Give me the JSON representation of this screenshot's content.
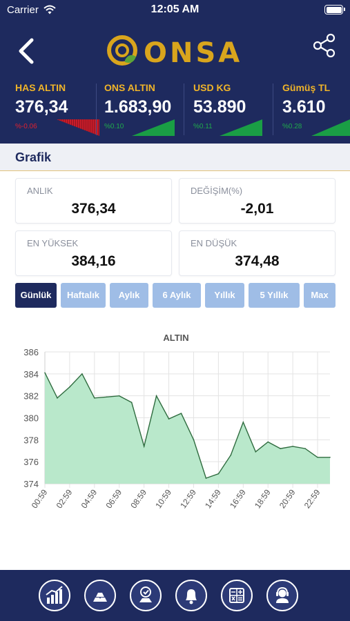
{
  "status_bar": {
    "carrier": "Carrier",
    "time": "12:05 AM"
  },
  "header": {
    "logo_text": "ONSA"
  },
  "tickers": [
    {
      "name": "HAS ALTIN",
      "price": "376,34",
      "change": "%-0.06",
      "direction": "down"
    },
    {
      "name": "ONS ALTIN",
      "price": "1.683,90",
      "change": "%0.10",
      "direction": "up"
    },
    {
      "name": "USD KG",
      "price": "53.890",
      "change": "%0.11",
      "direction": "up"
    },
    {
      "name": "Gümüş TL",
      "price": "3.610",
      "change": "%0.28",
      "direction": "up"
    }
  ],
  "section": {
    "title": "Grafik"
  },
  "stats": {
    "anlik": {
      "label": "ANLIK",
      "value": "376,34"
    },
    "degisim": {
      "label": "DEĞİŞİM(%)",
      "value": "-2,01"
    },
    "en_yuksek": {
      "label": "EN YÜKSEK",
      "value": "384,16"
    },
    "en_dusuk": {
      "label": "EN DÜŞÜK",
      "value": "374,48"
    }
  },
  "periods": [
    {
      "label": "Günlük",
      "active": true
    },
    {
      "label": "Haftalık",
      "active": false
    },
    {
      "label": "Aylık",
      "active": false
    },
    {
      "label": "6 Aylık",
      "active": false
    },
    {
      "label": "Yıllık",
      "active": false
    },
    {
      "label": "5 Yıllık",
      "active": false
    },
    {
      "label": "Max",
      "active": false
    }
  ],
  "colors": {
    "navy": "#1e2a5e",
    "gold": "#f0b429",
    "up": "#1faa4b",
    "down": "#e0202f",
    "area_fill": "#b9e8cb",
    "area_line": "#2e6b3e"
  },
  "chart_data": {
    "type": "area",
    "title": "ALTIN",
    "ylim": [
      374,
      386
    ],
    "yticks": [
      374,
      376,
      378,
      380,
      382,
      384,
      386
    ],
    "xticks": [
      "00:59",
      "02:59",
      "04:59",
      "06:59",
      "08:59",
      "10:59",
      "12:59",
      "14:59",
      "16:59",
      "18:59",
      "20:59",
      "22:59"
    ],
    "x": [
      "00:59",
      "01:59",
      "02:59",
      "03:59",
      "04:59",
      "05:59",
      "06:59",
      "07:59",
      "08:59",
      "09:59",
      "10:59",
      "11:59",
      "12:59",
      "13:59",
      "14:59",
      "15:59",
      "16:59",
      "17:59",
      "18:59",
      "19:59",
      "20:59",
      "21:59",
      "22:59",
      "23:59"
    ],
    "values": [
      384.1,
      381.8,
      382.8,
      384.0,
      381.8,
      381.9,
      382.0,
      381.4,
      377.4,
      382.0,
      379.9,
      380.4,
      378.0,
      374.5,
      374.9,
      376.6,
      379.6,
      376.9,
      377.8,
      377.2,
      377.4,
      377.2,
      376.4,
      376.4
    ],
    "grid": true,
    "legend": "none"
  },
  "tabbar": {
    "icons": [
      "chart-icon",
      "gold-bars-icon",
      "premium-icon",
      "bell-icon",
      "calculator-icon",
      "support-icon"
    ]
  }
}
